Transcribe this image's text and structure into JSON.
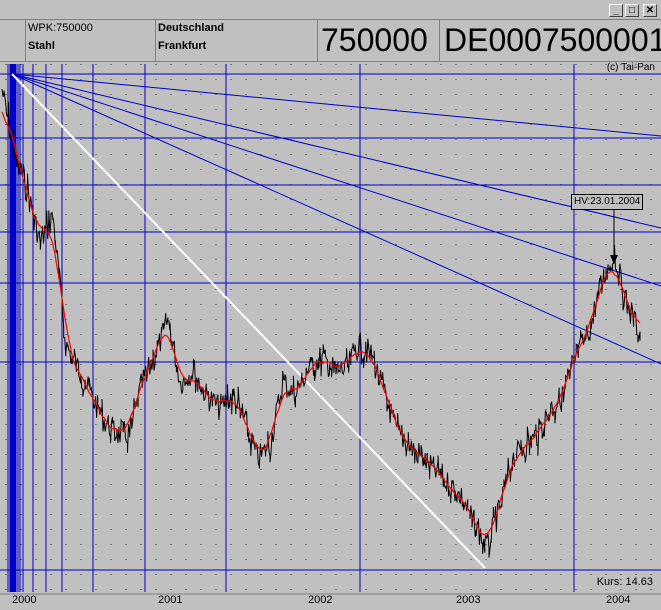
{
  "header": {
    "wpk_label": "WPK:750000",
    "sector": "Stahl",
    "country": "Deutschland",
    "exchange": "Frankfurt",
    "wkn_big": "750000",
    "isin_big": "DE0007500001"
  },
  "window_buttons": {
    "minimize": "_",
    "maximize": "□",
    "close": "✕"
  },
  "chart": {
    "copyright": "(c) Tai-Pan",
    "annotation": "HV:23.01.2004",
    "kurs_label": "Kurs:",
    "kurs_value": "14.63",
    "x_labels": [
      "2000",
      "2001",
      "2002",
      "2003",
      "2004"
    ]
  },
  "colors": {
    "background": "#c0c0c0",
    "grid_blue": "#0000c8",
    "price": "#000000",
    "moving_average": "#ff0000",
    "trendline": "#ffffff"
  },
  "chart_data": {
    "type": "line",
    "x_axis_labels": [
      "2000",
      "2001",
      "2002",
      "2003",
      "2004"
    ],
    "series": [
      {
        "kind": "price",
        "x": [
          "2000-01",
          "2000-02",
          "2000-03",
          "2000-04",
          "2000-05",
          "2000-06",
          "2000-07",
          "2000-08",
          "2000-09",
          "2000-10",
          "2000-11",
          "2000-12",
          "2001-01",
          "2001-02",
          "2001-03",
          "2001-04",
          "2001-05",
          "2001-06",
          "2001-07",
          "2001-08",
          "2001-09",
          "2001-10",
          "2001-11",
          "2001-12",
          "2002-01",
          "2002-02",
          "2002-03",
          "2002-04",
          "2002-05",
          "2002-06",
          "2002-07",
          "2002-08",
          "2002-09",
          "2002-10",
          "2002-11",
          "2002-12",
          "2003-01",
          "2003-02",
          "2003-03",
          "2003-04",
          "2003-05",
          "2003-06",
          "2003-07",
          "2003-08",
          "2003-09",
          "2003-10",
          "2003-11",
          "2003-12",
          "2004-01",
          "2004-02",
          "2004-03"
        ],
        "values": [
          30,
          25,
          22,
          18,
          20,
          10,
          8,
          6,
          4,
          3,
          3,
          7,
          9,
          12,
          7,
          8,
          6,
          5,
          6,
          4,
          1,
          2,
          7,
          6,
          8,
          9,
          8,
          8,
          10,
          9,
          6,
          3,
          2,
          1,
          0,
          -1,
          -2,
          -4,
          -6,
          -3,
          1,
          2,
          3,
          5,
          6,
          9,
          11,
          15,
          17,
          13,
          11
        ]
      }
    ]
  }
}
